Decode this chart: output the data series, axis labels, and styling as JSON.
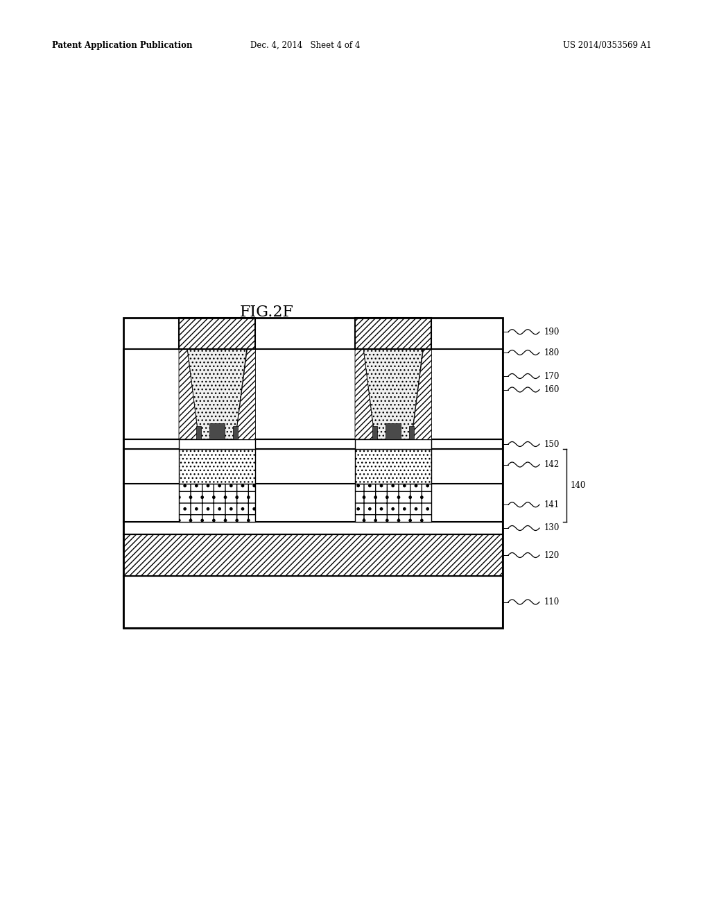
{
  "title": "FIG.2F",
  "patent_header_left": "Patent Application Publication",
  "patent_header_mid": "Dec. 4, 2014   Sheet 4 of 4",
  "patent_header_right": "US 2014/0353569 A1",
  "bg_color": "#ffffff"
}
